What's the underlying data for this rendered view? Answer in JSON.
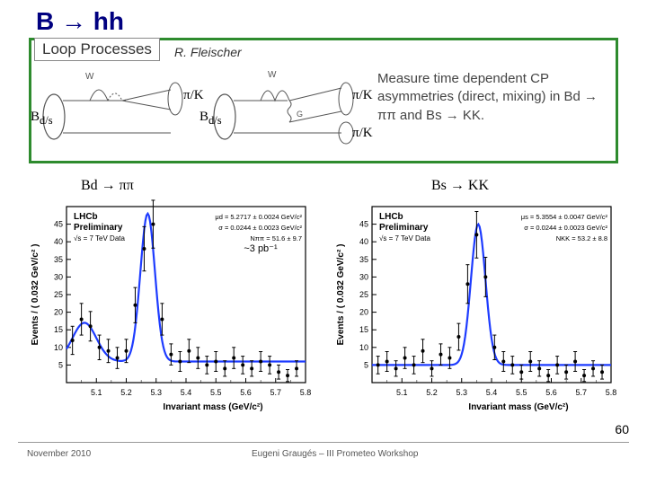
{
  "title": "B → hh",
  "loop_label": "Loop Processes",
  "reference": "R. Fleischer",
  "feyn": {
    "bd_label_1": "B",
    "bd_sub_1": "d/s",
    "pik_1": "π/K",
    "bd_label_2": "B",
    "bd_sub_2": "d/s",
    "pik_2a": "π/K",
    "pik_2b": "π/K",
    "w_label": "W",
    "g_label": "G"
  },
  "measure_text": "Measure time dependent CP asymmetries (direct, mixing) in Bd → ππ and Bs → KK.",
  "chart_left_title": "Bd → ππ",
  "chart_right_title": "Bs → KK",
  "left_chart": {
    "type": "scatter_fit",
    "xlabel": "Invariant mass (GeV/c²)",
    "ylabel": "Events / ( 0.032 GeV/c² )",
    "xlim": [
      5.0,
      5.8
    ],
    "xticks": [
      5.1,
      5.2,
      5.3,
      5.4,
      5.5,
      5.6,
      5.7,
      5.8
    ],
    "ylim": [
      0,
      50
    ],
    "yticks": [
      5,
      10,
      15,
      20,
      25,
      30,
      35,
      40,
      45
    ],
    "inset_labels": [
      "LHCb",
      "Preliminary",
      "√s = 7 TeV Data"
    ],
    "fit_params": [
      "μd = 5.2717 ± 0.0024 GeV/c²",
      "σ = 0.0244 ± 0.0023 GeV/c²",
      "Nππ = 51.6 ± 9.7"
    ],
    "lumi": "~3 pb⁻¹",
    "data": [
      {
        "x": 5.02,
        "y": 12,
        "ey": 4
      },
      {
        "x": 5.05,
        "y": 18,
        "ey": 4.5
      },
      {
        "x": 5.08,
        "y": 16,
        "ey": 4.2
      },
      {
        "x": 5.11,
        "y": 10,
        "ey": 3.5
      },
      {
        "x": 5.14,
        "y": 9,
        "ey": 3.3
      },
      {
        "x": 5.17,
        "y": 7,
        "ey": 3
      },
      {
        "x": 5.2,
        "y": 9,
        "ey": 3.3
      },
      {
        "x": 5.23,
        "y": 22,
        "ey": 5
      },
      {
        "x": 5.26,
        "y": 38,
        "ey": 6.3
      },
      {
        "x": 5.29,
        "y": 45,
        "ey": 6.8
      },
      {
        "x": 5.32,
        "y": 18,
        "ey": 4.5
      },
      {
        "x": 5.35,
        "y": 8,
        "ey": 3
      },
      {
        "x": 5.38,
        "y": 6,
        "ey": 2.8
      },
      {
        "x": 5.41,
        "y": 9,
        "ey": 3.3
      },
      {
        "x": 5.44,
        "y": 7,
        "ey": 3
      },
      {
        "x": 5.47,
        "y": 5,
        "ey": 2.5
      },
      {
        "x": 5.5,
        "y": 6,
        "ey": 2.8
      },
      {
        "x": 5.53,
        "y": 4,
        "ey": 2.2
      },
      {
        "x": 5.56,
        "y": 7,
        "ey": 3
      },
      {
        "x": 5.59,
        "y": 5,
        "ey": 2.5
      },
      {
        "x": 5.62,
        "y": 4,
        "ey": 2.2
      },
      {
        "x": 5.65,
        "y": 6,
        "ey": 2.8
      },
      {
        "x": 5.68,
        "y": 5,
        "ey": 2.5
      },
      {
        "x": 5.71,
        "y": 3,
        "ey": 2
      },
      {
        "x": 5.74,
        "y": 2,
        "ey": 1.7
      },
      {
        "x": 5.77,
        "y": 4,
        "ey": 2.2
      }
    ],
    "fit_curve_color": "#1e3cff",
    "marker_color": "#000000",
    "background_color": "#ffffff",
    "axis_color": "#000000",
    "fit_peak": {
      "mean": 5.2717,
      "sigma": 0.0244,
      "amplitude": 42,
      "bkg_level": 6,
      "bump_x": 5.06,
      "bump_amp": 11,
      "bump_sigma": 0.04
    }
  },
  "right_chart": {
    "type": "scatter_fit",
    "xlabel": "Invariant mass (GeV/c²)",
    "ylabel": "Events / ( 0.032 GeV/c² )",
    "xlim": [
      5.0,
      5.8
    ],
    "xticks": [
      5.1,
      5.2,
      5.3,
      5.4,
      5.5,
      5.6,
      5.7,
      5.8
    ],
    "ylim": [
      0,
      50
    ],
    "yticks": [
      5,
      10,
      15,
      20,
      25,
      30,
      35,
      40,
      45
    ],
    "inset_labels": [
      "LHCb",
      "Preliminary",
      "√s = 7 TeV Data"
    ],
    "fit_params": [
      "μs = 5.3554 ± 0.0047 GeV/c²",
      "σ = 0.0244 ± 0.0023 GeV/c²",
      "NKK = 53.2 ± 8.8"
    ],
    "data": [
      {
        "x": 5.02,
        "y": 5,
        "ey": 2.5
      },
      {
        "x": 5.05,
        "y": 6,
        "ey": 2.8
      },
      {
        "x": 5.08,
        "y": 4,
        "ey": 2.2
      },
      {
        "x": 5.11,
        "y": 7,
        "ey": 3
      },
      {
        "x": 5.14,
        "y": 5,
        "ey": 2.5
      },
      {
        "x": 5.17,
        "y": 9,
        "ey": 3.3
      },
      {
        "x": 5.2,
        "y": 4,
        "ey": 2.2
      },
      {
        "x": 5.23,
        "y": 8,
        "ey": 3
      },
      {
        "x": 5.26,
        "y": 7,
        "ey": 3
      },
      {
        "x": 5.29,
        "y": 13,
        "ey": 3.8
      },
      {
        "x": 5.32,
        "y": 28,
        "ey": 5.5
      },
      {
        "x": 5.35,
        "y": 42,
        "ey": 6.6
      },
      {
        "x": 5.38,
        "y": 30,
        "ey": 5.6
      },
      {
        "x": 5.41,
        "y": 10,
        "ey": 3.5
      },
      {
        "x": 5.44,
        "y": 6,
        "ey": 2.8
      },
      {
        "x": 5.47,
        "y": 5,
        "ey": 2.5
      },
      {
        "x": 5.5,
        "y": 3,
        "ey": 2
      },
      {
        "x": 5.53,
        "y": 6,
        "ey": 2.8
      },
      {
        "x": 5.56,
        "y": 4,
        "ey": 2.2
      },
      {
        "x": 5.59,
        "y": 2,
        "ey": 1.7
      },
      {
        "x": 5.62,
        "y": 5,
        "ey": 2.5
      },
      {
        "x": 5.65,
        "y": 3,
        "ey": 2
      },
      {
        "x": 5.68,
        "y": 6,
        "ey": 2.8
      },
      {
        "x": 5.71,
        "y": 2,
        "ey": 1.7
      },
      {
        "x": 5.74,
        "y": 4,
        "ey": 2.2
      },
      {
        "x": 5.77,
        "y": 3,
        "ey": 2
      }
    ],
    "fit_curve_color": "#1e3cff",
    "marker_color": "#000000",
    "background_color": "#ffffff",
    "axis_color": "#000000",
    "fit_peak": {
      "mean": 5.3554,
      "sigma": 0.0244,
      "amplitude": 40,
      "bkg_level": 5
    }
  },
  "page_number": "60",
  "footer_left": "November 2010",
  "footer_center": "Eugeni Graugés – III Prometeo Workshop"
}
